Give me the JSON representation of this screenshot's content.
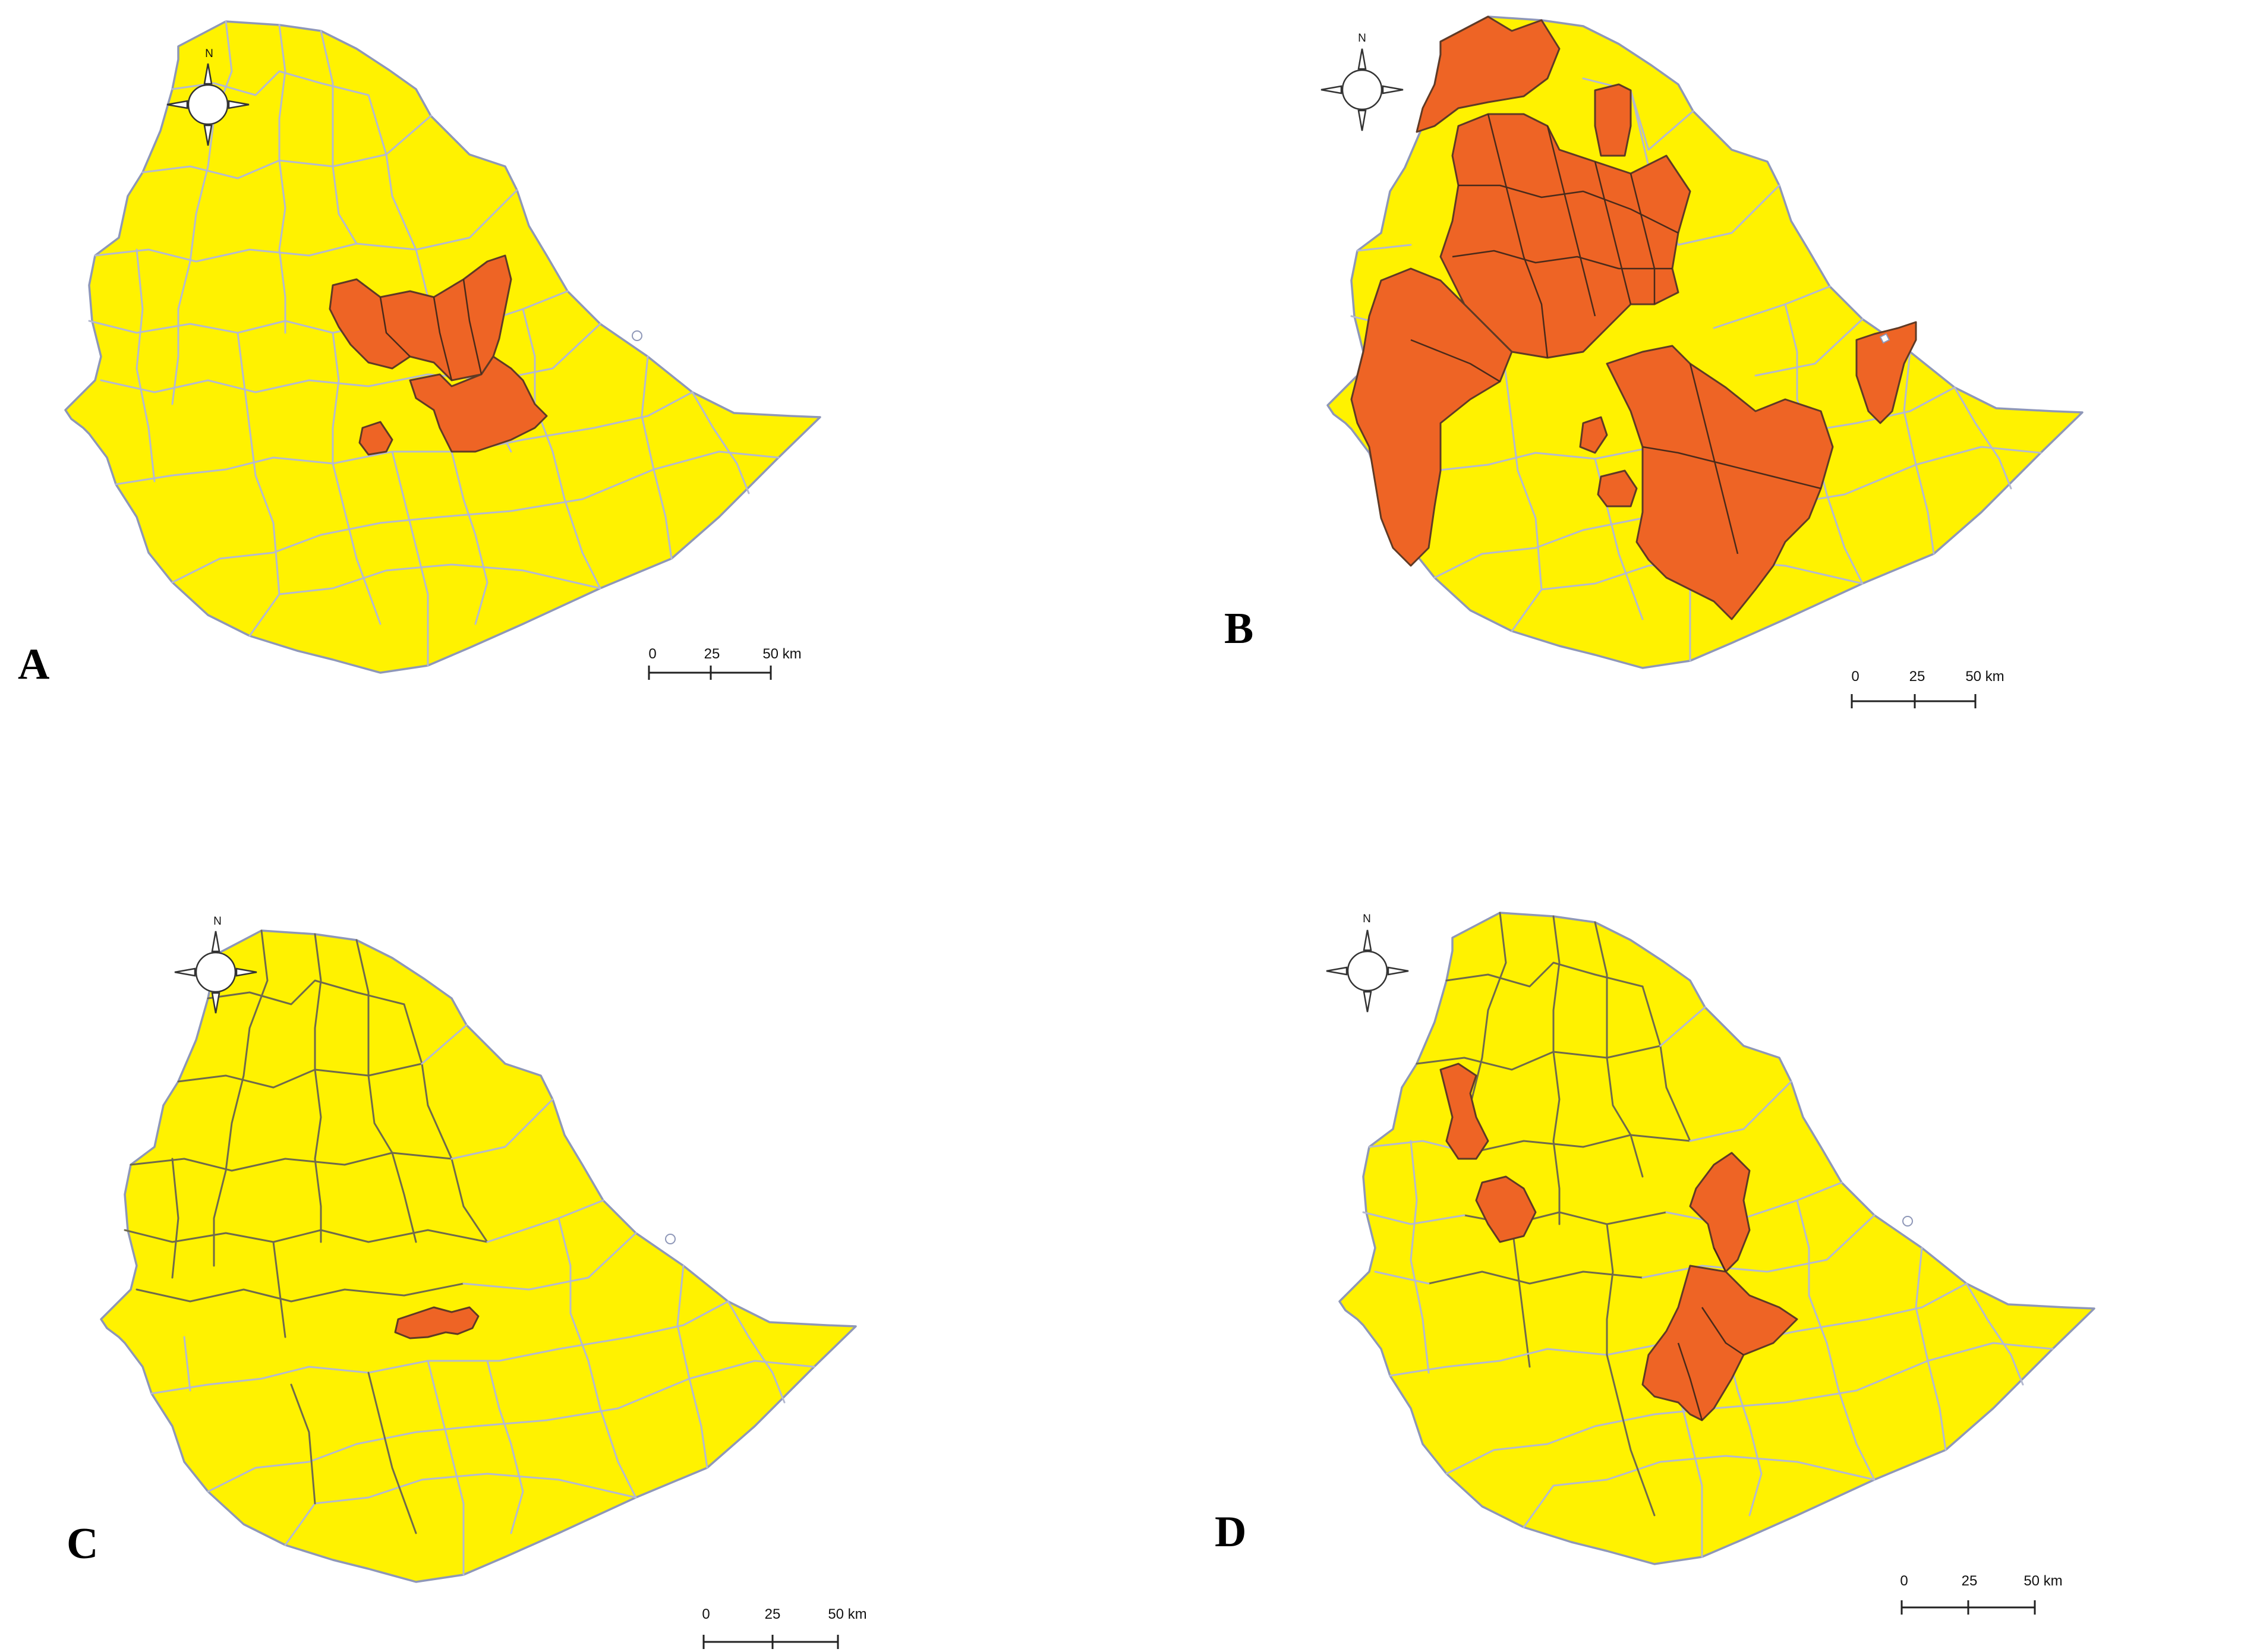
{
  "panels": [
    {
      "id": "A",
      "letter": "A",
      "north": "N",
      "scale": [
        "0",
        "25",
        "50 km"
      ],
      "highlighted": [
        "central-north-block",
        "central-south-block",
        "small-west-district"
      ]
    },
    {
      "id": "B",
      "letter": "B",
      "north": "N",
      "scale": [
        "0",
        "25",
        "50 km"
      ],
      "highlighted": [
        "north-west-block",
        "central-block",
        "west-block",
        "south-central-block",
        "east-block",
        "north-east-strip",
        "small-south-district"
      ]
    },
    {
      "id": "C",
      "letter": "C",
      "north": "N",
      "scale": [
        "0",
        "25",
        "50 km"
      ],
      "highlighted": [
        "central-small-district"
      ]
    },
    {
      "id": "D",
      "letter": "D",
      "north": "N",
      "scale": [
        "0",
        "25",
        "50 km"
      ],
      "highlighted": [
        "west-district-1",
        "west-district-2",
        "central-north-strip",
        "central-south-block"
      ]
    }
  ],
  "colors": {
    "region_fill": "#fff200",
    "highlight_fill": "#ee6425",
    "light_boundary": "#b4b9d0",
    "dark_boundary": "#6f6a4c"
  },
  "icons": {
    "north_arrow": "compass-rose-icon"
  }
}
